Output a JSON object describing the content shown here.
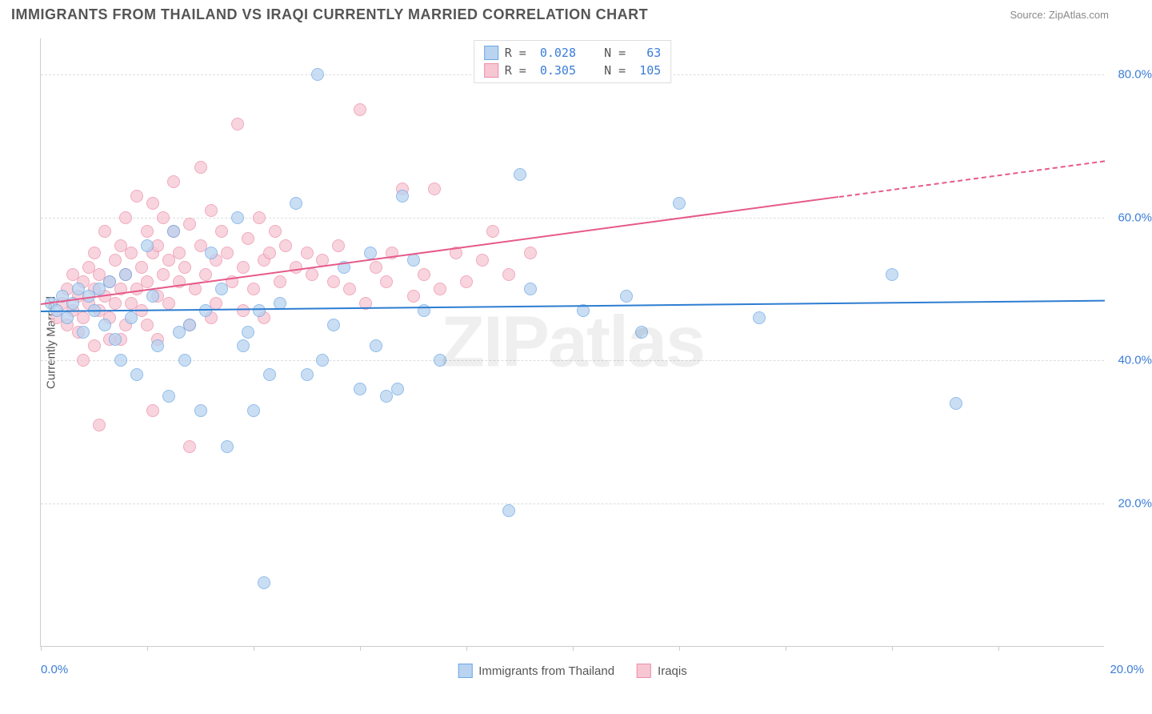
{
  "header": {
    "title": "IMMIGRANTS FROM THAILAND VS IRAQI CURRENTLY MARRIED CORRELATION CHART",
    "source_label": "Source: ",
    "source_value": "ZipAtlas.com"
  },
  "chart": {
    "type": "scatter",
    "watermark": "ZIPatlas",
    "ylabel": "Currently Married",
    "x_axis": {
      "min": 0.0,
      "max": 20.0,
      "ticks_pct": [
        0,
        10,
        20,
        30,
        40,
        50,
        60,
        70,
        80,
        90
      ],
      "label_left": "0.0%",
      "label_right": "20.0%"
    },
    "y_axis": {
      "min": 0.0,
      "max": 85.0,
      "gridlines": [
        20.0,
        40.0,
        60.0,
        80.0
      ],
      "labels": [
        "20.0%",
        "40.0%",
        "60.0%",
        "80.0%"
      ]
    },
    "series": [
      {
        "name": "Immigrants from Thailand",
        "color_fill": "#b9d3f0",
        "color_border": "#6ea8e5",
        "trend_color": "#2d7dd2",
        "r": "0.028",
        "n": "63",
        "trend": {
          "x1": 0.0,
          "y1": 47.0,
          "x2": 20.0,
          "y2": 48.5
        },
        "points": [
          [
            0.2,
            48
          ],
          [
            0.3,
            47
          ],
          [
            0.4,
            49
          ],
          [
            0.5,
            46
          ],
          [
            0.6,
            48
          ],
          [
            0.7,
            50
          ],
          [
            0.8,
            44
          ],
          [
            0.9,
            49
          ],
          [
            1.0,
            47
          ],
          [
            1.1,
            50
          ],
          [
            1.2,
            45
          ],
          [
            1.3,
            51
          ],
          [
            1.4,
            43
          ],
          [
            1.5,
            40
          ],
          [
            1.6,
            52
          ],
          [
            1.8,
            38
          ],
          [
            2.0,
            56
          ],
          [
            2.2,
            42
          ],
          [
            2.4,
            35
          ],
          [
            2.5,
            58
          ],
          [
            2.7,
            40
          ],
          [
            2.8,
            45
          ],
          [
            3.0,
            33
          ],
          [
            3.2,
            55
          ],
          [
            3.5,
            28
          ],
          [
            3.7,
            60
          ],
          [
            3.8,
            42
          ],
          [
            4.0,
            33
          ],
          [
            4.2,
            9
          ],
          [
            4.3,
            38
          ],
          [
            4.5,
            48
          ],
          [
            4.8,
            62
          ],
          [
            5.0,
            38
          ],
          [
            5.2,
            80
          ],
          [
            5.5,
            45
          ],
          [
            5.7,
            53
          ],
          [
            6.0,
            36
          ],
          [
            6.2,
            55
          ],
          [
            6.5,
            35
          ],
          [
            6.7,
            36
          ],
          [
            6.8,
            63
          ],
          [
            7.0,
            54
          ],
          [
            7.2,
            47
          ],
          [
            7.5,
            40
          ],
          [
            8.8,
            19
          ],
          [
            9.0,
            66
          ],
          [
            9.2,
            50
          ],
          [
            10.2,
            47
          ],
          [
            11.0,
            49
          ],
          [
            11.3,
            44
          ],
          [
            12.0,
            62
          ],
          [
            13.5,
            46
          ],
          [
            16.0,
            52
          ],
          [
            17.2,
            34
          ],
          [
            1.7,
            46
          ],
          [
            2.1,
            49
          ],
          [
            2.6,
            44
          ],
          [
            3.1,
            47
          ],
          [
            3.4,
            50
          ],
          [
            3.9,
            44
          ],
          [
            4.1,
            47
          ],
          [
            5.3,
            40
          ],
          [
            6.3,
            42
          ]
        ]
      },
      {
        "name": "Iraqis",
        "color_fill": "#f6c6d3",
        "color_border": "#ec8fa9",
        "trend_color": "#e65a8a",
        "r": "0.305",
        "n": "105",
        "trend": {
          "x1": 0.0,
          "y1": 48.0,
          "x2": 15.0,
          "y2": 63.0
        },
        "trend_dash": {
          "x1": 15.0,
          "y1": 63.0,
          "x2": 20.0,
          "y2": 68.0
        },
        "points": [
          [
            0.3,
            46
          ],
          [
            0.4,
            48
          ],
          [
            0.5,
            50
          ],
          [
            0.5,
            45
          ],
          [
            0.6,
            47
          ],
          [
            0.6,
            52
          ],
          [
            0.7,
            49
          ],
          [
            0.7,
            44
          ],
          [
            0.8,
            51
          ],
          [
            0.8,
            46
          ],
          [
            0.9,
            53
          ],
          [
            0.9,
            48
          ],
          [
            1.0,
            50
          ],
          [
            1.0,
            55
          ],
          [
            1.1,
            47
          ],
          [
            1.1,
            52
          ],
          [
            1.2,
            49
          ],
          [
            1.2,
            58
          ],
          [
            1.3,
            51
          ],
          [
            1.3,
            46
          ],
          [
            1.4,
            54
          ],
          [
            1.4,
            48
          ],
          [
            1.5,
            56
          ],
          [
            1.5,
            50
          ],
          [
            1.6,
            52
          ],
          [
            1.6,
            60
          ],
          [
            1.7,
            48
          ],
          [
            1.7,
            55
          ],
          [
            1.8,
            63
          ],
          [
            1.8,
            50
          ],
          [
            1.9,
            53
          ],
          [
            1.9,
            47
          ],
          [
            2.0,
            58
          ],
          [
            2.0,
            51
          ],
          [
            2.1,
            55
          ],
          [
            2.1,
            62
          ],
          [
            2.2,
            49
          ],
          [
            2.2,
            56
          ],
          [
            2.3,
            52
          ],
          [
            2.3,
            60
          ],
          [
            2.4,
            54
          ],
          [
            2.4,
            48
          ],
          [
            2.5,
            58
          ],
          [
            2.5,
            65
          ],
          [
            2.6,
            51
          ],
          [
            2.6,
            55
          ],
          [
            2.7,
            53
          ],
          [
            2.8,
            28
          ],
          [
            2.8,
            59
          ],
          [
            2.9,
            50
          ],
          [
            3.0,
            56
          ],
          [
            3.0,
            67
          ],
          [
            3.1,
            52
          ],
          [
            3.2,
            61
          ],
          [
            3.3,
            54
          ],
          [
            3.3,
            48
          ],
          [
            3.4,
            58
          ],
          [
            3.5,
            55
          ],
          [
            3.6,
            51
          ],
          [
            3.7,
            73
          ],
          [
            3.8,
            53
          ],
          [
            3.9,
            57
          ],
          [
            4.0,
            50
          ],
          [
            4.1,
            60
          ],
          [
            4.2,
            54
          ],
          [
            4.3,
            55
          ],
          [
            4.4,
            58
          ],
          [
            4.5,
            51
          ],
          [
            4.6,
            56
          ],
          [
            4.8,
            53
          ],
          [
            5.0,
            55
          ],
          [
            5.1,
            52
          ],
          [
            5.3,
            54
          ],
          [
            5.5,
            51
          ],
          [
            5.6,
            56
          ],
          [
            5.8,
            50
          ],
          [
            6.0,
            75
          ],
          [
            6.1,
            48
          ],
          [
            6.3,
            53
          ],
          [
            6.5,
            51
          ],
          [
            6.6,
            55
          ],
          [
            6.8,
            64
          ],
          [
            7.0,
            49
          ],
          [
            7.2,
            52
          ],
          [
            7.4,
            64
          ],
          [
            7.5,
            50
          ],
          [
            7.8,
            55
          ],
          [
            8.0,
            51
          ],
          [
            8.3,
            54
          ],
          [
            8.5,
            58
          ],
          [
            8.8,
            52
          ],
          [
            9.2,
            55
          ],
          [
            2.0,
            45
          ],
          [
            1.5,
            43
          ],
          [
            1.0,
            42
          ],
          [
            0.8,
            40
          ],
          [
            1.3,
            43
          ],
          [
            1.6,
            45
          ],
          [
            2.2,
            43
          ],
          [
            2.8,
            45
          ],
          [
            3.2,
            46
          ],
          [
            3.8,
            47
          ],
          [
            4.2,
            46
          ],
          [
            1.1,
            31
          ],
          [
            2.1,
            33
          ]
        ]
      }
    ],
    "legend_top": {
      "rows": [
        {
          "swatch_fill": "#b9d3f0",
          "swatch_border": "#6ea8e5",
          "r_label": "R = ",
          "r_val": "0.028",
          "n_label": "   N = ",
          "n_val": " 63"
        },
        {
          "swatch_fill": "#f6c6d3",
          "swatch_border": "#ec8fa9",
          "r_label": "R = ",
          "r_val": "0.305",
          "n_label": "   N = ",
          "n_val": "105"
        }
      ]
    },
    "legend_bottom": [
      {
        "swatch_fill": "#b9d3f0",
        "swatch_border": "#6ea8e5",
        "label": "Immigrants from Thailand"
      },
      {
        "swatch_fill": "#f6c6d3",
        "swatch_border": "#ec8fa9",
        "label": "Iraqis"
      }
    ]
  }
}
